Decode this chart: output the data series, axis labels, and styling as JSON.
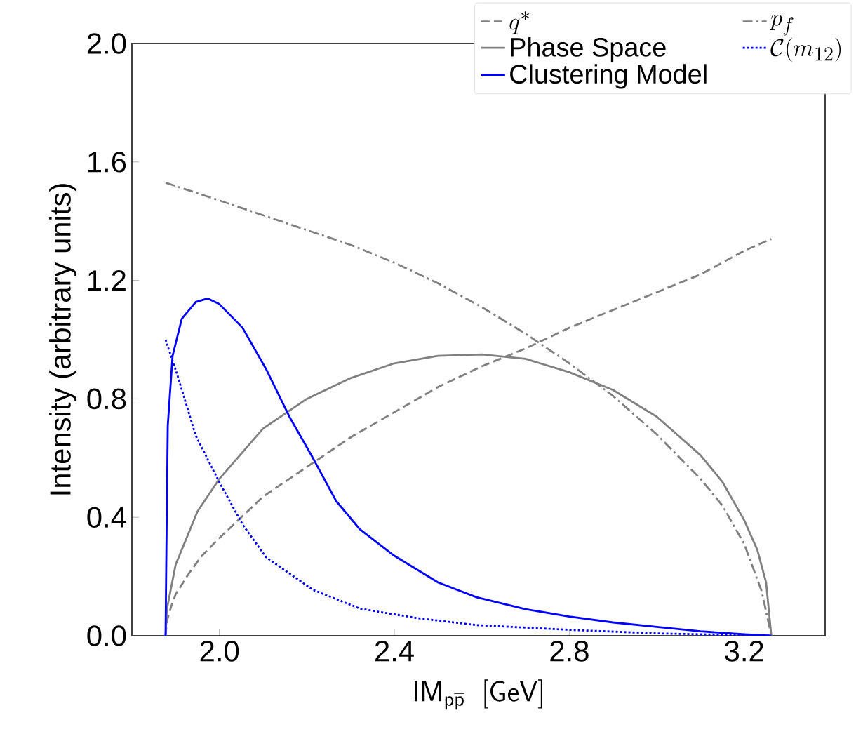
{
  "chart_data": {
    "type": "line",
    "xlabel": "\\mathsf{IM}_{\\mathsf{p\\overline{p}}}\\ \\ [\\mathsf{GeV}]",
    "ylabel": "Intensity (arbitrary units)",
    "xlim": [
      1.8,
      3.385
    ],
    "ylim": [
      0,
      2.0
    ],
    "xticks": [
      {
        "value": 2.0,
        "label": "2.0"
      },
      {
        "value": 2.4,
        "label": "2.4"
      },
      {
        "value": 2.8,
        "label": "2.8"
      },
      {
        "value": 3.2,
        "label": "3.2"
      }
    ],
    "yticks": [
      {
        "value": 0,
        "label": "0.0"
      },
      {
        "value": 0.4,
        "label": "0.4"
      },
      {
        "value": 0.8,
        "label": "0.8"
      },
      {
        "value": 1.2,
        "label": "1.2"
      },
      {
        "value": 1.6,
        "label": "1.6"
      },
      {
        "value": 2.0,
        "label": "2.0"
      }
    ],
    "grid": false,
    "legend": "top right",
    "series": [
      {
        "name": "q^{*}",
        "color": "#808080",
        "line_style": "dashed",
        "x": [
          1.877,
          1.88,
          1.89,
          1.9,
          1.93,
          1.96,
          2.0,
          2.1,
          2.2,
          2.3,
          2.4,
          2.5,
          2.6,
          2.7,
          2.8,
          2.9,
          3.0,
          3.1,
          3.2,
          3.262
        ],
        "values": [
          0,
          0.05,
          0.1,
          0.14,
          0.21,
          0.27,
          0.33,
          0.47,
          0.57,
          0.67,
          0.755,
          0.84,
          0.91,
          0.97,
          1.04,
          1.1,
          1.16,
          1.22,
          1.3,
          1.34
        ]
      },
      {
        "name": "\\text{Phase Space}",
        "color": "#808080",
        "line_style": "solid",
        "x": [
          1.877,
          1.88,
          1.9,
          1.95,
          2.0,
          2.1,
          2.2,
          2.3,
          2.4,
          2.5,
          2.6,
          2.7,
          2.8,
          2.9,
          3.0,
          3.1,
          3.15,
          3.2,
          3.23,
          3.25,
          3.262
        ],
        "values": [
          0,
          0.09,
          0.24,
          0.42,
          0.53,
          0.7,
          0.8,
          0.87,
          0.92,
          0.945,
          0.95,
          0.935,
          0.89,
          0.83,
          0.74,
          0.61,
          0.52,
          0.39,
          0.29,
          0.18,
          0
        ]
      },
      {
        "name": "\\text{Clustering Model}",
        "color": "#0000ff",
        "line_style": "solid",
        "x": [
          1.877,
          1.879,
          1.882,
          1.893,
          1.914,
          1.946,
          1.973,
          2.0,
          2.053,
          2.107,
          2.16,
          2.214,
          2.267,
          2.321,
          2.4,
          2.5,
          2.588,
          2.7,
          2.8,
          2.9,
          3.0,
          3.1,
          3.2,
          3.262
        ],
        "values": [
          0,
          0.31,
          0.71,
          0.945,
          1.07,
          1.127,
          1.139,
          1.12,
          1.04,
          0.9,
          0.74,
          0.6,
          0.455,
          0.36,
          0.27,
          0.18,
          0.13,
          0.09,
          0.065,
          0.045,
          0.03,
          0.015,
          0.005,
          0
        ]
      },
      {
        "name": "p_{f}",
        "color": "#808080",
        "line_style": "dashdot",
        "x": [
          1.877,
          2.0,
          2.1,
          2.2,
          2.3,
          2.4,
          2.5,
          2.6,
          2.7,
          2.8,
          2.9,
          3.0,
          3.1,
          3.15,
          3.2,
          3.24,
          3.262
        ],
        "values": [
          1.53,
          1.47,
          1.42,
          1.37,
          1.32,
          1.26,
          1.19,
          1.11,
          1.02,
          0.92,
          0.81,
          0.68,
          0.53,
          0.44,
          0.31,
          0.15,
          0
        ]
      },
      {
        "name": "\\mathcal{C}(m_{12})",
        "color": "#0000ff",
        "line_style": "dotted",
        "x": [
          1.877,
          1.904,
          1.946,
          2.0,
          2.053,
          2.107,
          2.214,
          2.321,
          2.45,
          2.588,
          2.8,
          3.0,
          3.262
        ],
        "values": [
          1.0,
          0.88,
          0.676,
          0.518,
          0.376,
          0.265,
          0.155,
          0.092,
          0.06,
          0.036,
          0.02,
          0.008,
          0
        ]
      }
    ]
  }
}
